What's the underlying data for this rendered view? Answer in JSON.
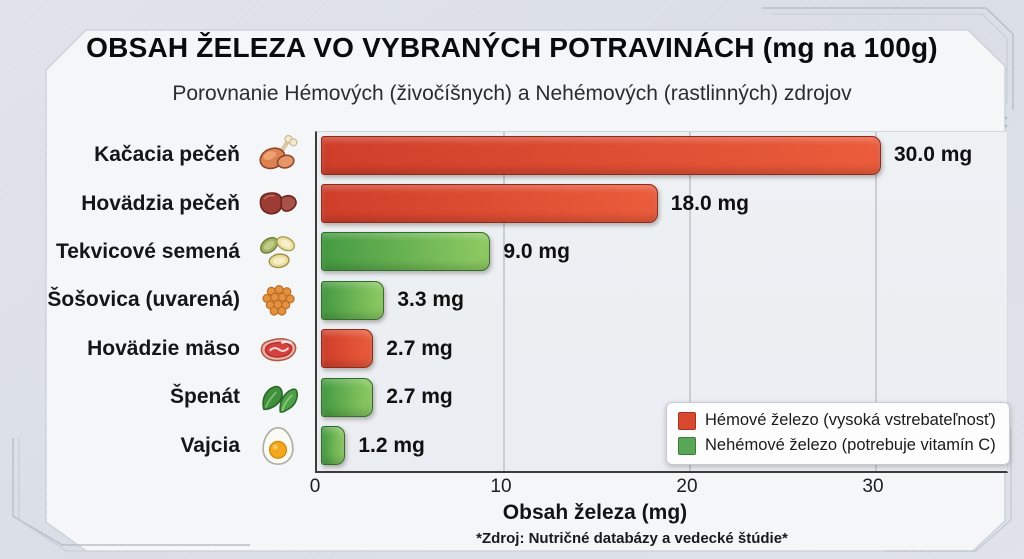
{
  "title": "OBSAH ŽELEZA VO VYBRANÝCH POTRAVINÁCH (mg na 100g)",
  "subtitle": "Porovnanie Hémových (živočíšnych) a Nehémových (rastlinných) zdrojov",
  "source_note": "*Zdroj: Nutričné databázy a vedecké štúdie*",
  "colors": {
    "background": "#dde1e8",
    "card": "#f4f6f8",
    "axis": "#3c3c3c",
    "gridline": "#c9cdd4",
    "heme": "#d8492f",
    "heme_gradient": [
      "#cf3e2a",
      "#ea5c3b"
    ],
    "heme_border": "#8e2a1b",
    "nonheme": "#57a757",
    "nonheme_gradient": [
      "#449a41",
      "#8fcb63"
    ],
    "nonheme_border": "#2f6e2c"
  },
  "legend": {
    "items": [
      {
        "label": "Hémové železo (vysoká vstrebateľnosť)",
        "series": "heme",
        "color": "#d8492f",
        "border": "#a33322"
      },
      {
        "label": "Nehémové železo (potrebuje vitamín C)",
        "series": "nonheme",
        "color": "#57a757",
        "border": "#3c7a3c"
      }
    ]
  },
  "chart_data": {
    "type": "bar",
    "orientation": "horizontal",
    "title": "OBSAH ŽELEZA VO VYBRANÝCH POTRAVINÁCH (mg na 100g)",
    "subtitle": "Porovnanie Hémových (živočíšnych) a Nehémových (rastlinných) zdrojov",
    "categories": [
      "Kačacia pečeň",
      "Hovädzia pečeň",
      "Tekvicové semená",
      "Šošovica (uvarená)",
      "Hovädzie mäso",
      "Špenát",
      "Vajcia"
    ],
    "values": [
      30.0,
      18.0,
      9.0,
      3.3,
      2.7,
      2.7,
      1.2
    ],
    "value_labels": [
      "30.0 mg",
      "18.0 mg",
      "9.0 mg",
      "3.3 mg",
      "2.7 mg",
      "2.7 mg",
      "1.2 mg"
    ],
    "groups": [
      "heme",
      "heme",
      "nonheme",
      "nonheme",
      "heme",
      "nonheme",
      "nonheme"
    ],
    "icons": [
      "duck-leg-icon",
      "liver-icon",
      "pumpkin-seeds-icon",
      "lentils-icon",
      "steak-icon",
      "spinach-leaf-icon",
      "egg-icon"
    ],
    "xlabel": "Obsah železa (mg)",
    "xticks": [
      0,
      10,
      20,
      30
    ],
    "xlim": [
      0,
      37
    ],
    "grid": true,
    "legend_position": "lower right",
    "legend_entries": [
      "Hémové železo (vysoká vstrebateľnosť)",
      "Nehémové železo (potrebuje vitamín C)"
    ],
    "source": "*Zdroj: Nutričné databázy a vedecké štúdie*"
  }
}
